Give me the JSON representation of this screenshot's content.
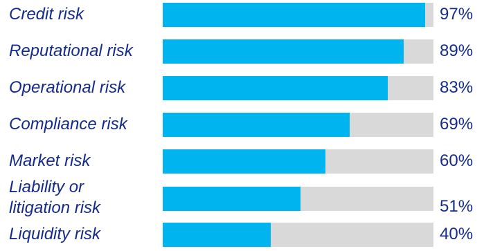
{
  "chart_data": {
    "type": "bar",
    "orientation": "horizontal",
    "categories": [
      "Credit risk",
      "Reputational risk",
      "Operational risk",
      "Compliance risk",
      "Market risk",
      "Liability or\nlitigation risk",
      "Liquidity risk"
    ],
    "values": [
      97,
      89,
      83,
      69,
      60,
      51,
      40
    ],
    "value_labels": [
      "97%",
      "89%",
      "83%",
      "69%",
      "60%",
      "51%",
      "40%"
    ],
    "xlim": [
      0,
      100
    ],
    "grid": false,
    "legend": "none"
  },
  "colors": {
    "bar": "#00b4f0",
    "track": "#d9d9d9",
    "label": "#142b8c",
    "background": "#ffffff"
  }
}
